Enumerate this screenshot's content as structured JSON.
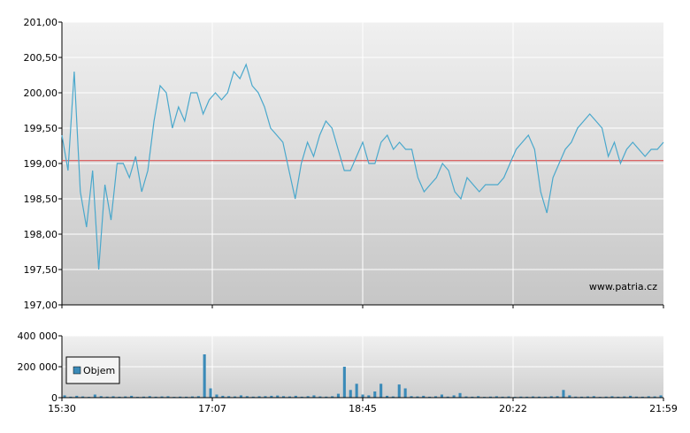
{
  "chart_data": [
    {
      "type": "line",
      "title": "",
      "xlabel": "",
      "ylabel": "",
      "ylim": [
        197.0,
        201.0
      ],
      "yticks": [
        197.0,
        197.5,
        198.0,
        198.5,
        199.0,
        199.5,
        200.0,
        200.5,
        201.0
      ],
      "ytick_labels": [
        "197,00",
        "197,50",
        "198,00",
        "198,50",
        "199,00",
        "199,50",
        "200,00",
        "200,50",
        "201,00"
      ],
      "xtick_labels": [
        "15:30",
        "17:07",
        "18:45",
        "20:22",
        "21:59"
      ],
      "reference_line": 199.04,
      "watermark": "www.patria.cz",
      "grid": true,
      "colors": {
        "line": "#4aa8cc",
        "reference": "#d94040",
        "grid": "#ffffff",
        "axis": "#000000"
      },
      "x": [
        "15:30",
        "15:33",
        "15:36",
        "15:40",
        "15:44",
        "15:48",
        "15:52",
        "15:56",
        "16:00",
        "16:04",
        "16:08",
        "16:12",
        "16:16",
        "16:20",
        "16:24",
        "16:28",
        "16:32",
        "16:36",
        "16:40",
        "16:44",
        "16:48",
        "16:52",
        "16:56",
        "17:00",
        "17:04",
        "17:08",
        "17:12",
        "17:16",
        "17:20",
        "17:24",
        "17:28",
        "17:32",
        "17:36",
        "17:40",
        "17:44",
        "17:48",
        "17:52",
        "17:56",
        "18:00",
        "18:04",
        "18:08",
        "18:12",
        "18:16",
        "18:20",
        "18:24",
        "18:28",
        "18:32",
        "18:36",
        "18:40",
        "18:44",
        "18:48",
        "18:52",
        "18:56",
        "19:00",
        "19:04",
        "19:08",
        "19:12",
        "19:16",
        "19:20",
        "19:24",
        "19:28",
        "19:32",
        "19:36",
        "19:40",
        "19:44",
        "19:48",
        "19:52",
        "19:56",
        "20:00",
        "20:04",
        "20:08",
        "20:12",
        "20:16",
        "20:20",
        "20:24",
        "20:28",
        "20:32",
        "20:36",
        "20:40",
        "20:44",
        "20:48",
        "20:52",
        "20:56",
        "21:00",
        "21:04",
        "21:08",
        "21:12",
        "21:16",
        "21:20",
        "21:24",
        "21:28",
        "21:32",
        "21:36",
        "21:40",
        "21:44",
        "21:48",
        "21:52",
        "21:56",
        "21:59"
      ],
      "series": [
        {
          "values": [
            199.4,
            198.9,
            200.3,
            198.6,
            198.1,
            198.9,
            197.5,
            198.7,
            198.2,
            199.0,
            199.0,
            198.8,
            199.1,
            198.6,
            198.9,
            199.6,
            200.1,
            200.0,
            199.5,
            199.8,
            199.6,
            200.0,
            200.0,
            199.7,
            199.9,
            200.0,
            199.9,
            200.0,
            200.3,
            200.2,
            200.4,
            200.1,
            200.0,
            199.8,
            199.5,
            199.4,
            199.3,
            198.9,
            198.5,
            199.0,
            199.3,
            199.1,
            199.4,
            199.6,
            199.5,
            199.2,
            198.9,
            198.9,
            199.1,
            199.3,
            199.0,
            199.0,
            199.3,
            199.4,
            199.2,
            199.3,
            199.2,
            199.2,
            198.8,
            198.6,
            198.7,
            198.8,
            199.0,
            198.9,
            198.6,
            198.5,
            198.8,
            198.7,
            198.6,
            198.7,
            198.7,
            198.7,
            198.8,
            199.0,
            199.2,
            199.3,
            199.4,
            199.2,
            198.6,
            198.3,
            198.8,
            199.0,
            199.2,
            199.3,
            199.5,
            199.6,
            199.7,
            199.6,
            199.5,
            199.1,
            199.3,
            199.0,
            199.2,
            199.3,
            199.2,
            199.1,
            199.2,
            199.2,
            199.3
          ]
        }
      ]
    },
    {
      "type": "bar",
      "title": "",
      "xlabel": "",
      "ylabel": "",
      "ylim": [
        0,
        400000
      ],
      "yticks": [
        0,
        200000,
        400000
      ],
      "ytick_labels": [
        "0",
        "200 000",
        "400 000"
      ],
      "xtick_labels": [
        "15:30",
        "17:07",
        "18:45",
        "20:22",
        "21:59"
      ],
      "legend": {
        "placement": "left",
        "label": "Objem"
      },
      "colors": {
        "bar": "#3a8ab8",
        "axis": "#000000"
      },
      "series": [
        {
          "name": "Objem",
          "values": [
            15000,
            6000,
            12000,
            8000,
            5000,
            20000,
            10000,
            7000,
            9000,
            6000,
            8000,
            12000,
            5000,
            7000,
            10000,
            6000,
            8000,
            9000,
            5000,
            7000,
            6000,
            8000,
            10000,
            280000,
            60000,
            20000,
            12000,
            10000,
            8000,
            15000,
            10000,
            7000,
            9000,
            10000,
            12000,
            14000,
            10000,
            8000,
            12000,
            6000,
            10000,
            15000,
            8000,
            7000,
            9000,
            25000,
            200000,
            50000,
            90000,
            20000,
            15000,
            40000,
            90000,
            12000,
            8000,
            85000,
            60000,
            10000,
            8000,
            12000,
            6000,
            9000,
            20000,
            7000,
            15000,
            30000,
            8000,
            6000,
            10000,
            5000,
            7000,
            9000,
            6000,
            8000,
            5000,
            7000,
            6000,
            8000,
            7000,
            6000,
            9000,
            10000,
            50000,
            15000,
            7000,
            6000,
            8000,
            10000,
            5000,
            7000,
            9000,
            6000,
            8000,
            12000,
            7000,
            6000,
            9000,
            8000,
            15000
          ]
        }
      ]
    }
  ]
}
